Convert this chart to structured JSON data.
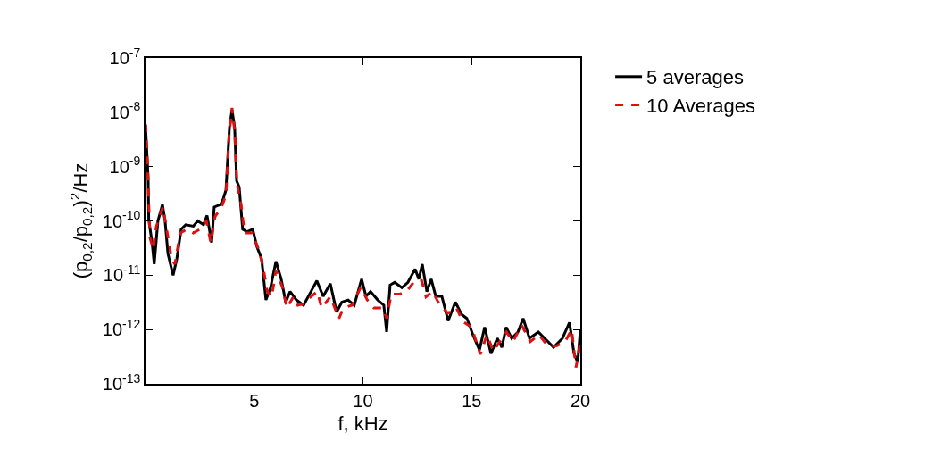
{
  "chart_data": {
    "type": "line",
    "xlabel": "f, kHz",
    "ylabel": "(p$_{0,2}$/p$_{0,2}$)$^{2}$/Hz",
    "log": "y",
    "legend": "top right",
    "marker": "none",
    "xlim": [
      0,
      20
    ],
    "xticks": [
      5,
      10,
      15,
      20
    ],
    "ylim": [
      1e-13,
      1e-07
    ],
    "yticks": [
      {
        "value": 1e-13,
        "label": "10$^{-13}$"
      },
      {
        "value": 1e-12,
        "label": "10$^{-12}$"
      },
      {
        "value": 1e-11,
        "label": "10$^{-11}$"
      },
      {
        "value": 1e-10,
        "label": "10$^{-10}$"
      },
      {
        "value": 1e-09,
        "label": "10$^{-9}$"
      },
      {
        "value": 1e-08,
        "label": "10$^{-8}$"
      },
      {
        "value": 1e-07,
        "label": "10$^{-7}$"
      }
    ],
    "series": [
      {
        "name": "5 averages",
        "color": "#000000",
        "line_style": "solid",
        "x": [
          0.0,
          0.12,
          0.15,
          0.3,
          0.4,
          0.57,
          0.78,
          0.9,
          1.03,
          1.27,
          1.44,
          1.64,
          1.85,
          2.2,
          2.4,
          2.67,
          2.83,
          3.04,
          3.16,
          3.45,
          3.57,
          3.7,
          3.86,
          3.98,
          4.1,
          4.19,
          4.31,
          4.47,
          4.68,
          4.93,
          5.13,
          5.34,
          5.54,
          5.75,
          6.0,
          6.24,
          6.45,
          6.65,
          6.94,
          7.27,
          7.56,
          7.88,
          8.17,
          8.5,
          8.79,
          9.03,
          9.32,
          9.6,
          9.94,
          10.14,
          10.35,
          10.68,
          10.96,
          11.09,
          11.25,
          11.46,
          11.79,
          12.07,
          12.4,
          12.57,
          12.73,
          12.94,
          13.14,
          13.35,
          13.63,
          13.92,
          14.25,
          14.54,
          14.78,
          15.07,
          15.36,
          15.6,
          15.89,
          16.18,
          16.39,
          16.59,
          16.84,
          17.13,
          17.37,
          17.66,
          18.07,
          18.36,
          18.77,
          19.18,
          19.5,
          19.71,
          19.88,
          20.0
        ],
        "values": [
          5.9e-09,
          6.3e-10,
          1.05e-10,
          4e-11,
          1.6e-11,
          1e-10,
          2e-10,
          1e-10,
          2.5e-11,
          1e-11,
          2e-11,
          7e-11,
          8.5e-11,
          8e-11,
          1e-10,
          8.5e-11,
          1.26e-10,
          4e-11,
          1.8e-10,
          2e-10,
          2.5e-10,
          3.7e-10,
          5.2e-09,
          1.1e-08,
          5.2e-09,
          5.5e-10,
          4.2e-10,
          7e-11,
          6.3e-11,
          7e-11,
          3.3e-11,
          2e-11,
          3.5e-12,
          5.9e-12,
          1.8e-11,
          8.5e-12,
          3.2e-12,
          5e-12,
          3.5e-12,
          2.8e-12,
          4.6e-12,
          7.9e-12,
          4.1e-12,
          7e-12,
          2.1e-12,
          3.2e-12,
          3.5e-12,
          2.8e-12,
          8.5e-12,
          4.1e-12,
          5e-12,
          3.5e-12,
          2.8e-12,
          9e-13,
          6.6e-12,
          7.4e-12,
          5.9e-12,
          7.4e-12,
          1.3e-11,
          8.5e-12,
          1.6e-11,
          5e-12,
          8.5e-12,
          4.1e-12,
          4.1e-12,
          1.45e-12,
          3.2e-12,
          1.9e-12,
          1.6e-12,
          7.8e-13,
          4.2e-13,
          1.1e-12,
          3.6e-13,
          6.9e-13,
          4.7e-13,
          1.1e-12,
          6.9e-13,
          9e-13,
          1.6e-12,
          6.9e-13,
          9e-13,
          6.9e-13,
          4.7e-13,
          6.9e-13,
          1.35e-12,
          3.6e-13,
          2.5e-13,
          1e-12
        ]
      },
      {
        "name": "10 Averages",
        "color": "#dd1111",
        "line_style": "dashed",
        "x": [
          0.0,
          0.1,
          0.2,
          0.35,
          0.5,
          0.8,
          1.0,
          1.2,
          1.35,
          1.6,
          1.9,
          2.2,
          2.5,
          2.8,
          3.0,
          3.2,
          3.5,
          3.7,
          3.85,
          3.98,
          4.1,
          4.2,
          4.4,
          4.55,
          4.9,
          5.2,
          5.4,
          5.6,
          5.8,
          6.0,
          6.3,
          6.5,
          6.8,
          7.0,
          7.3,
          7.6,
          7.9,
          8.1,
          8.5,
          8.9,
          9.1,
          9.5,
          9.9,
          10.2,
          10.5,
          10.9,
          11.1,
          11.3,
          11.7,
          12.0,
          12.4,
          12.7,
          12.9,
          13.2,
          13.5,
          13.9,
          14.3,
          14.6,
          15.0,
          15.4,
          15.7,
          16.0,
          16.3,
          16.6,
          16.9,
          17.3,
          17.7,
          18.1,
          18.5,
          18.9,
          19.3,
          19.6,
          19.8,
          20.0
        ],
        "values": [
          6e-09,
          1e-09,
          5e-11,
          3e-11,
          8e-11,
          1.8e-10,
          6e-11,
          2e-11,
          1.6e-11,
          6e-11,
          7e-11,
          6e-11,
          7e-11,
          1e-10,
          4e-11,
          1.2e-10,
          1.8e-10,
          3e-10,
          4e-09,
          1.2e-08,
          4.5e-09,
          5e-10,
          2e-10,
          6e-11,
          6e-11,
          3e-11,
          1.5e-11,
          5e-12,
          4e-12,
          1.2e-11,
          6e-12,
          2.5e-12,
          4e-12,
          2.8e-12,
          3e-12,
          4e-12,
          5e-12,
          2.5e-12,
          4e-12,
          1.6e-12,
          2.5e-12,
          2.8e-12,
          6e-12,
          3.5e-12,
          2.5e-12,
          2.5e-12,
          1.6e-12,
          4.5e-12,
          4.5e-12,
          5e-12,
          8e-12,
          8e-12,
          4e-12,
          5e-12,
          3e-12,
          2e-12,
          2.5e-12,
          1.4e-12,
          1.1e-12,
          3.5e-13,
          8e-13,
          4e-13,
          6e-13,
          9e-13,
          6e-13,
          1.2e-12,
          6e-13,
          8e-13,
          5e-13,
          5e-13,
          6e-13,
          1e-12,
          2e-13,
          6e-13
        ]
      }
    ]
  }
}
